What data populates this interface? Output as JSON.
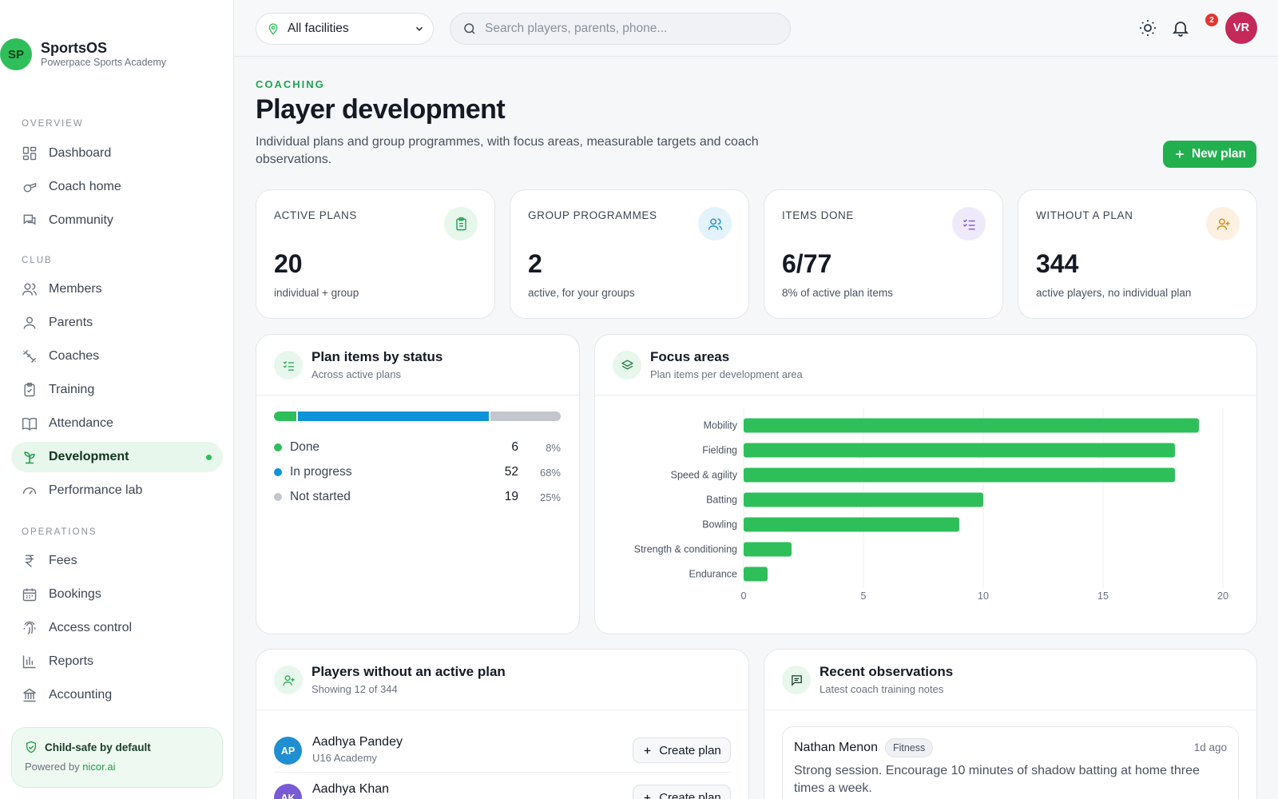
{
  "brand": {
    "initials": "SP",
    "name": "SportsOS",
    "subtitle": "Powerpace Sports Academy"
  },
  "sidebar": {
    "sections": [
      {
        "label": "OVERVIEW",
        "items": [
          {
            "label": "Dashboard",
            "icon": "dashboard-icon"
          },
          {
            "label": "Coach home",
            "icon": "whistle-icon"
          },
          {
            "label": "Community",
            "icon": "chat-icon"
          }
        ]
      },
      {
        "label": "CLUB",
        "items": [
          {
            "label": "Members",
            "icon": "users-icon"
          },
          {
            "label": "Parents",
            "icon": "user-icon"
          },
          {
            "label": "Coaches",
            "icon": "dumbbell-icon"
          },
          {
            "label": "Training",
            "icon": "clipboard-icon"
          },
          {
            "label": "Attendance",
            "icon": "book-icon"
          },
          {
            "label": "Development",
            "icon": "sprout-icon",
            "active": true
          },
          {
            "label": "Performance lab",
            "icon": "gauge-icon"
          }
        ]
      },
      {
        "label": "OPERATIONS",
        "items": [
          {
            "label": "Fees",
            "icon": "rupee-icon"
          },
          {
            "label": "Bookings",
            "icon": "calendar-icon"
          },
          {
            "label": "Access control",
            "icon": "fingerprint-icon"
          },
          {
            "label": "Reports",
            "icon": "bar-chart-icon"
          },
          {
            "label": "Accounting",
            "icon": "bank-icon"
          }
        ]
      }
    ],
    "footer": {
      "title": "Child-safe by default",
      "powered_prefix": "Powered by ",
      "powered_link": "nicor.ai"
    }
  },
  "topbar": {
    "facility": "All facilities",
    "search_placeholder": "Search players, parents, phone...",
    "notifications": "2",
    "avatar": "VR"
  },
  "header": {
    "eyebrow": "COACHING",
    "title": "Player development",
    "description": "Individual plans and group programmes, with focus areas, measurable targets and coach observations.",
    "new_plan": "New plan"
  },
  "stats": [
    {
      "label": "ACTIVE PLANS",
      "value": "20",
      "sub": "individual + group",
      "icon": "clipboard-icon",
      "color": "#22a350",
      "bg": "#e7f7eb"
    },
    {
      "label": "GROUP PROGRAMMES",
      "value": "2",
      "sub": "active, for your groups",
      "icon": "users-icon",
      "color": "#1f8fd1",
      "bg": "#e3f2fb"
    },
    {
      "label": "ITEMS DONE",
      "value": "6/77",
      "sub": "8% of active plan items",
      "icon": "checklist-icon",
      "color": "#7a5bd6",
      "bg": "#efeafb"
    },
    {
      "label": "WITHOUT A PLAN",
      "value": "344",
      "sub": "active players, no individual plan",
      "icon": "user-plus-icon",
      "color": "#d48a1c",
      "bg": "#fcf1e0"
    }
  ],
  "status_card": {
    "title": "Plan items by status",
    "subtitle": "Across active plans",
    "rows": [
      {
        "label": "Done",
        "count": 6,
        "pct": "8%",
        "color": "#2fbf5a"
      },
      {
        "label": "In progress",
        "count": 52,
        "pct": "68%",
        "color": "#0f93d8"
      },
      {
        "label": "Not started",
        "count": 19,
        "pct": "25%",
        "color": "#c3c7cd"
      }
    ]
  },
  "focus_card": {
    "title": "Focus areas",
    "subtitle": "Plan items per development area"
  },
  "chart_data": {
    "type": "bar",
    "orientation": "horizontal",
    "categories": [
      "Mobility",
      "Fielding",
      "Speed & agility",
      "Batting",
      "Bowling",
      "Strength & conditioning",
      "Endurance"
    ],
    "values": [
      19,
      18,
      18,
      10,
      9,
      2,
      1
    ],
    "xlim": [
      0,
      20
    ],
    "xticks": [
      0,
      5,
      10,
      15,
      20
    ],
    "grid": true,
    "color": "#2fbf5a"
  },
  "players_card": {
    "title": "Players without an active plan",
    "subtitle": "Showing 12 of 344",
    "rows": [
      {
        "initials": "AP",
        "name": "Aadhya Pandey",
        "group": "U16 Academy",
        "action": "Create plan",
        "color": "#1f8fd1"
      },
      {
        "initials": "AK",
        "name": "Aadhya Khan",
        "group": "",
        "action": "Create plan",
        "color": "#7a5bd6"
      }
    ]
  },
  "observations_card": {
    "title": "Recent observations",
    "subtitle": "Latest coach training notes",
    "items": [
      {
        "coach": "Nathan Menon",
        "tag": "Fitness",
        "time": "1d ago",
        "text": "Strong session. Encourage 10 minutes of shadow batting at home three times a week."
      }
    ]
  }
}
